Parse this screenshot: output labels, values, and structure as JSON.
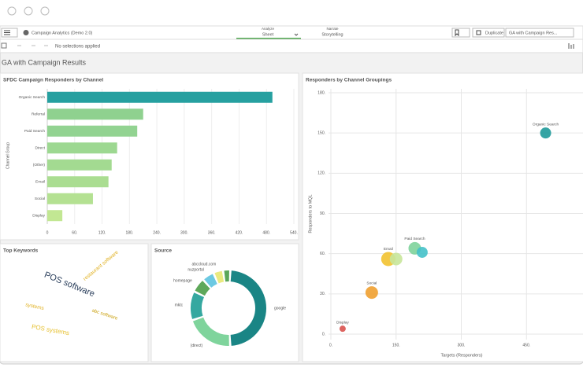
{
  "app": {
    "title": "Campaign Analytics (Demo 2.0)",
    "tabs": [
      {
        "caption": "Analyze",
        "label": "Sheet"
      },
      {
        "caption": "Narrate",
        "label": "Storytelling"
      }
    ],
    "duplicate": "Duplicate",
    "sheet_menu": "GA with Campaign Res...",
    "selections": "No selections applied",
    "sheet_title": "GA with Campaign Results"
  },
  "chart_data": [
    {
      "type": "bar",
      "title": "SFDC Campaign Responders by Channel",
      "y_label": "Channel Group",
      "categories": [
        "Organic Search",
        "Referral",
        "Paid Search",
        "Direct",
        "(Other)",
        "Email",
        "Social",
        "Display"
      ],
      "values": [
        493,
        210,
        197,
        153,
        141,
        134,
        100,
        33
      ],
      "colors": [
        "#26a0a0",
        "#8fd18f",
        "#92d391",
        "#9dd891",
        "#a3da91",
        "#aadd91",
        "#b4e192",
        "#c2e793"
      ],
      "xlim": [
        0,
        540
      ],
      "xticks": [
        0,
        {
          "value": 60,
          "label": "60."
        },
        {
          "value": 120,
          "label": "120."
        },
        {
          "value": 180,
          "label": "180."
        },
        {
          "value": 240,
          "label": "240."
        },
        {
          "value": 300,
          "label": "300."
        },
        {
          "value": 360,
          "label": "360."
        },
        {
          "value": 420,
          "label": "420."
        },
        {
          "value": 480,
          "label": "480."
        },
        {
          "value": 540,
          "label": "540."
        }
      ],
      "grid": true
    },
    {
      "type": "scatter",
      "title": "Responders by Channel Groupings",
      "x_label": "Targets (Responders)",
      "y_label": "Responders to MQL",
      "labels": [
        "Organic Search",
        "Paid Search",
        null,
        "Email",
        null,
        "Social",
        "Display"
      ],
      "x": [
        494,
        193,
        210,
        132,
        150,
        94,
        27
      ],
      "values": [
        150,
        64,
        61,
        56,
        56,
        31,
        4
      ],
      "sizes": [
        7,
        8,
        7,
        9,
        8,
        8,
        4
      ],
      "colors": [
        "#1f9a9a",
        "#7ed39b",
        "#45c1c9",
        "#f2c230",
        "#c8e69a",
        "#f0a030",
        "#d9534f"
      ],
      "xlim": [
        0,
        580
      ],
      "ylim": [
        0,
        180
      ],
      "xticks": [
        {
          "value": 0,
          "label": "0."
        },
        {
          "value": 150,
          "label": "150."
        },
        {
          "value": 300,
          "label": "300."
        },
        {
          "value": 450,
          "label": "450."
        }
      ],
      "yticks": [
        {
          "value": 0,
          "label": "0."
        },
        {
          "value": 30,
          "label": "30."
        },
        {
          "value": 60,
          "label": "60."
        },
        {
          "value": 90,
          "label": "90."
        },
        {
          "value": 120,
          "label": "120."
        },
        {
          "value": 150,
          "label": "150."
        },
        {
          "value": 180,
          "label": "180."
        }
      ],
      "grid": true
    },
    {
      "type": "wordcloud",
      "title": "Top Keywords",
      "words": [
        "POS software",
        "restaurant software",
        "systems",
        "abc software",
        "POS systems"
      ]
    },
    {
      "type": "pie",
      "title": "Source",
      "labels": [
        "google",
        "(direct)",
        "mktc",
        "homepage",
        "nuzportal",
        "abccloud.com",
        null
      ],
      "values": [
        47,
        20,
        12,
        6,
        5,
        4,
        3
      ],
      "colors": [
        "#1a8585",
        "#7fd49c",
        "#35a8a0",
        "#5ea85a",
        "#6cc9e2",
        "#eaea80",
        "#5aa65a"
      ]
    }
  ]
}
